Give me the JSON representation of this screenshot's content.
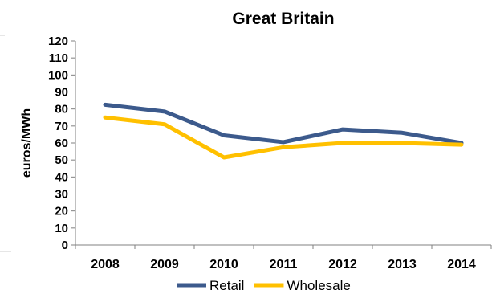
{
  "chart_data": {
    "type": "line",
    "title": "Great Britain",
    "xlabel": "",
    "ylabel": "euros/MWh",
    "categories": [
      "2008",
      "2009",
      "2010",
      "2011",
      "2012",
      "2013",
      "2014"
    ],
    "yticks": [
      "0",
      "10",
      "20",
      "30",
      "40",
      "50",
      "60",
      "70",
      "80",
      "90",
      "100",
      "110",
      "120"
    ],
    "ylim": [
      0,
      120
    ],
    "grid": false,
    "legend_position": "bottom",
    "series": [
      {
        "name": "Retail",
        "color": "#3c5a8c",
        "values": [
          82.5,
          78.5,
          64.5,
          60.5,
          68,
          66,
          60
        ]
      },
      {
        "name": "Wholesale",
        "color": "#ffc000",
        "values": [
          75,
          71,
          51.5,
          57.5,
          60,
          60,
          59
        ]
      }
    ]
  }
}
